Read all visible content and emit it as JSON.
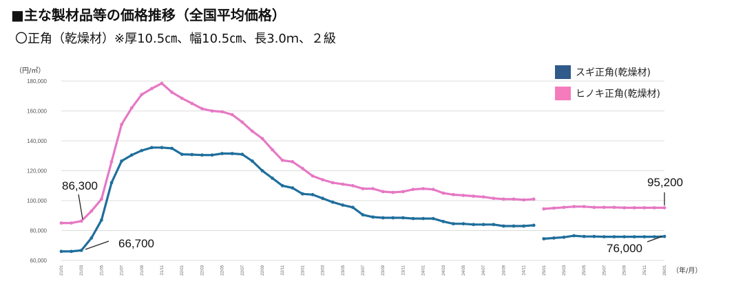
{
  "header": {
    "title": "■主な製材品等の価格推移（全国平均価格）",
    "subtitle": "〇正角（乾燥材）※厚10.5㎝、幅10.5㎝、長3.0ｍ、２級"
  },
  "chart_data": {
    "type": "line",
    "y_unit_label": "（円/㎥）",
    "x_unit_label": "（年/月）",
    "ylim": [
      60000,
      180000
    ],
    "y_ticks": [
      "60,000",
      "80,000",
      "100,000",
      "120,000",
      "140,000",
      "160,000",
      "180,000"
    ],
    "y_tick_values": [
      60000,
      80000,
      100000,
      120000,
      140000,
      160000,
      180000
    ],
    "x_ticks": [
      "21/01",
      "21/03",
      "21/05",
      "21/07",
      "21/09",
      "21/11",
      "22/01",
      "22/03",
      "22/05",
      "22/07",
      "22/09",
      "22/11",
      "23/01",
      "23/03",
      "23/05",
      "23/07",
      "23/09",
      "23/11",
      "24/01",
      "24/03",
      "24/05",
      "24/07",
      "24/09",
      "24/11",
      "25/01",
      "25/03",
      "25/05",
      "25/07",
      "25/09",
      "25/11",
      "26/01"
    ],
    "x_tick_index": [
      0,
      2,
      4,
      6,
      8,
      10,
      12,
      14,
      16,
      18,
      20,
      22,
      24,
      26,
      28,
      30,
      32,
      34,
      36,
      38,
      40,
      42,
      44,
      46,
      48,
      50,
      52,
      54,
      56,
      58,
      60
    ],
    "series": [
      {
        "name": "スギ正角(乾燥材)",
        "color": "#1f6e9c",
        "legend_color": "#2f5a8a",
        "segments": [
          {
            "start": 0,
            "values": [
              66000,
              66000,
              66700,
              75000,
              87000,
              112000,
              126500,
              130500,
              133500,
              135500,
              135500,
              135000,
              131000,
              130800,
              130500,
              130500,
              131500,
              131500,
              131000,
              126500,
              120000,
              115000,
              110000,
              108500,
              104500,
              104000,
              101500,
              99000,
              97000,
              95500,
              90500,
              89000,
              88500,
              88500,
              88500,
              88000,
              88000,
              88000,
              86000,
              84500,
              84500,
              84000,
              84000,
              84000,
              83000,
              83000,
              83000,
              83500
            ]
          },
          {
            "start": 48,
            "values": [
              74500,
              75000,
              75500,
              76500,
              76000,
              76000,
              75800,
              75800,
              75800,
              75800,
              75800,
              75800,
              76000
            ]
          }
        ]
      },
      {
        "name": "ヒノキ正角(乾燥材)",
        "color": "#e678c4",
        "legend_color": "#f57cbc",
        "segments": [
          {
            "start": 0,
            "values": [
              85000,
              85000,
              86300,
              93000,
              101000,
              126000,
              151000,
              162000,
              171000,
              175000,
              178500,
              172500,
              168500,
              165000,
              161500,
              160000,
              159500,
              157500,
              152500,
              146500,
              141500,
              134000,
              127000,
              126000,
              121500,
              116500,
              114000,
              112000,
              111000,
              110000,
              108000,
              108000,
              106000,
              105500,
              106000,
              107500,
              108000,
              107500,
              105000,
              104000,
              103500,
              103000,
              102500,
              101500,
              101000,
              101000,
              100500,
              101000
            ]
          },
          {
            "start": 48,
            "values": [
              94500,
              95000,
              95500,
              96000,
              96000,
              95500,
              95500,
              95500,
              95200,
              95200,
              95200,
              95200,
              95200
            ]
          }
        ]
      }
    ],
    "annotations": [
      {
        "label": "86,300",
        "series": 1,
        "index": 2
      },
      {
        "label": "66,700",
        "series": 0,
        "index": 2
      },
      {
        "label": "95,200",
        "series": 1,
        "index": 60
      },
      {
        "label": "76,000",
        "series": 0,
        "index": 60
      }
    ],
    "grid": true,
    "legend_position": "top-right"
  }
}
